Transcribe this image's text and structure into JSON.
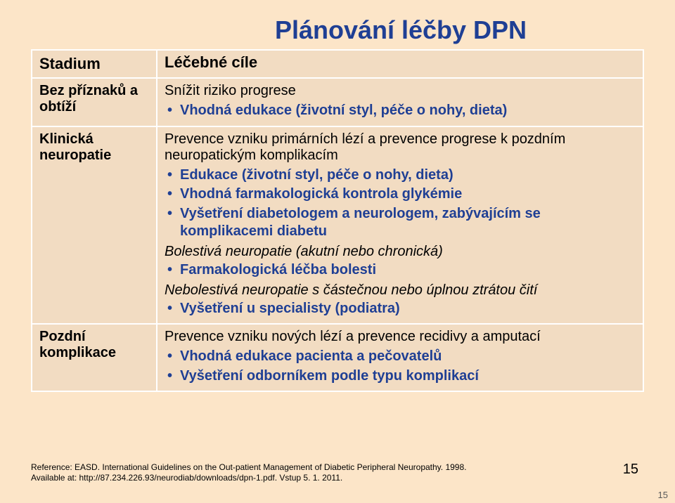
{
  "colors": {
    "page_bg": "#fce5c8",
    "cell_bg": "#f2dcc2",
    "cell_border": "#ffffff",
    "title_color": "#1f3f94",
    "bullet_color": "#1f3f94",
    "text_color": "#000000"
  },
  "fonts": {
    "title_family": "Comic Sans MS",
    "title_size_pt": 28,
    "header_size_pt": 17,
    "body_size_pt": 15,
    "reference_size_pt": 9
  },
  "title": "Plánování léčby DPN",
  "table": {
    "header": {
      "left": "Stadium",
      "right": "Léčebné cíle"
    },
    "rows": [
      {
        "left": "Bez příznaků a obtíží",
        "lead": "Snížit riziko progrese",
        "groups": [
          {
            "bullets": [
              "Vhodná edukace (životní styl, péče o nohy, dieta)"
            ]
          }
        ]
      },
      {
        "left": "Klinická neuropatie",
        "lead": "Prevence vzniku primárních lézí a prevence progrese k pozdním neuropatickým komplikacím",
        "groups": [
          {
            "bullets": [
              "Edukace (životní styl, péče o nohy, dieta)",
              "Vhodná farmakologická kontrola glykémie",
              "Vyšetření diabetologem a neurologem, zabývajícím se komplikacemi diabetu"
            ]
          },
          {
            "subhead": "Bolestivá neuropatie (akutní nebo chronická)",
            "bullets": [
              "Farmakologická léčba bolesti"
            ]
          },
          {
            "subhead": "Nebolestivá neuropatie s částečnou nebo úplnou ztrátou čití",
            "bullets": [
              "Vyšetření u specialisty (podiatra)"
            ]
          }
        ]
      },
      {
        "left": "Pozdní komplikace",
        "lead": "Prevence vzniku nových lézí a prevence recidivy a amputací",
        "groups": [
          {
            "bullets": [
              "Vhodná edukace pacienta a pečovatelů",
              "Vyšetření odborníkem podle typu komplikací"
            ]
          }
        ]
      }
    ]
  },
  "reference": {
    "line1": "Reference: EASD. International Guidelines on the Out-patient Management of Diabetic Peripheral Neuropathy. 1998.",
    "line2": "Available at: http://87.234.226.93/neurodiab/downloads/dpn-1.pdf. Vstup 5. 1. 2011."
  },
  "page_number_main": "15",
  "page_number_footer": "15"
}
